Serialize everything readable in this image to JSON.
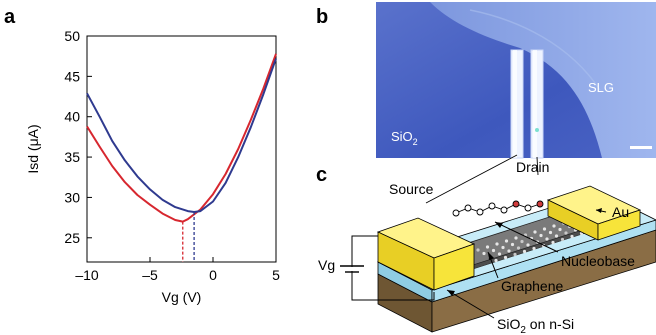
{
  "panels": {
    "a": {
      "letter": "a"
    },
    "b": {
      "letter": "b",
      "labels": {
        "slg": "SLG",
        "sio2_prefix": "SiO",
        "sio2_sub": "2"
      },
      "colors": {
        "substrate": "#4a66c8",
        "flake": "#8aa4e6",
        "electrode": "#eef3ff"
      }
    },
    "c": {
      "letter": "c",
      "labels": {
        "source": "Source",
        "drain": "Drain",
        "au": "Au",
        "vg": "Vg",
        "nucleobase": "Nucleobase",
        "graphene": "Graphene",
        "substrate_prefix": "SiO",
        "substrate_sub": "2",
        "substrate_suffix": " on n-Si"
      },
      "colors": {
        "gold": "#f7e43a",
        "graphene": "#7a7a7a",
        "oxide": "#aee0f2",
        "silicon": "#8a6d45"
      }
    }
  },
  "chart_data": {
    "type": "line",
    "xlabel": "Vg (V)",
    "ylabel": "Isd (μA)",
    "xlim": [
      -10,
      5
    ],
    "ylim": [
      22,
      50
    ],
    "xticks": [
      -10,
      -5,
      0,
      5
    ],
    "xtick_labels": [
      "–10",
      "–5",
      "0",
      "5"
    ],
    "yticks": [
      25,
      30,
      35,
      40,
      45,
      50
    ],
    "grid": false,
    "series": [
      {
        "color": "#d7272f",
        "min_vg": -2.4,
        "x": [
          -10,
          -9,
          -8,
          -7,
          -6,
          -5,
          -4,
          -3,
          -2.4,
          -2,
          -1,
          0,
          1,
          2,
          3,
          4,
          5
        ],
        "y": [
          38.8,
          36.3,
          33.9,
          31.9,
          30.3,
          29.1,
          28.0,
          27.2,
          27.0,
          27.3,
          28.5,
          30.4,
          32.9,
          36.0,
          39.6,
          43.5,
          47.8
        ]
      },
      {
        "color": "#2f3a8f",
        "min_vg": -1.5,
        "x": [
          -10,
          -9,
          -8,
          -7,
          -6,
          -5,
          -4,
          -3,
          -2,
          -1.5,
          -1,
          0,
          1,
          2,
          3,
          4,
          5
        ],
        "y": [
          42.9,
          40.0,
          37.0,
          34.6,
          32.6,
          31.0,
          29.7,
          28.8,
          28.3,
          28.2,
          28.3,
          29.5,
          31.8,
          35.0,
          38.7,
          42.8,
          47.2
        ]
      }
    ]
  }
}
